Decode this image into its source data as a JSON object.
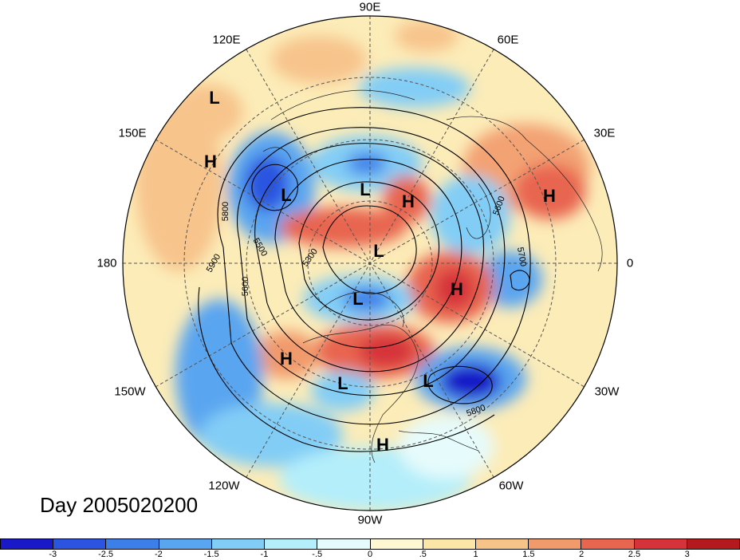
{
  "title": "Day 2005020200",
  "longitude_labels": {
    "lon_90e": "90E",
    "lon_60e": "60E",
    "lon_30e": "30E",
    "lon_0": "0",
    "lon_30w": "30W",
    "lon_60w": "60W",
    "lon_90w": "90W",
    "lon_120w": "120W",
    "lon_150w": "150W",
    "lon_180": "180",
    "lon_150e": "150E",
    "lon_120e": "120E"
  },
  "pressure_centers": [
    {
      "kind": "L",
      "id": "l1"
    },
    {
      "kind": "H",
      "id": "h1"
    },
    {
      "kind": "L",
      "id": "l2"
    },
    {
      "kind": "L",
      "id": "l3"
    },
    {
      "kind": "H",
      "id": "h2"
    },
    {
      "kind": "H",
      "id": "h3"
    },
    {
      "kind": "L",
      "id": "l4"
    },
    {
      "kind": "H",
      "id": "h4"
    },
    {
      "kind": "L",
      "id": "l5"
    },
    {
      "kind": "H",
      "id": "h5"
    },
    {
      "kind": "L",
      "id": "l6"
    },
    {
      "kind": "L",
      "id": "l7"
    },
    {
      "kind": "H",
      "id": "h6"
    }
  ],
  "contour_labels": [
    "5800",
    "5500",
    "5900",
    "5600",
    "5300",
    "5600",
    "5700",
    "5800"
  ],
  "colorbar": {
    "colors": [
      "#1919c8",
      "#2b55e0",
      "#3c7fe8",
      "#5aa5f0",
      "#82cdf6",
      "#b4eefa",
      "#e6fbfb",
      "#fdf7d2",
      "#fbe6a8",
      "#f6c489",
      "#f19a6c",
      "#e8654f",
      "#d6323a",
      "#b4191e"
    ],
    "tick_labels": [
      "-3",
      "-2.5",
      "-2",
      "-1.5",
      "-1",
      "-.5",
      "0",
      ".5",
      "1",
      "1.5",
      "2",
      "2.5",
      "3"
    ]
  }
}
